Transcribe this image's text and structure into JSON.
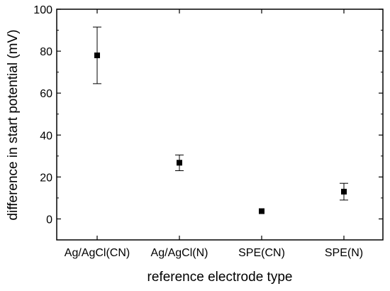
{
  "chart_data": {
    "type": "scatter",
    "title": "",
    "xlabel": "reference electrode type",
    "ylabel": "difference in start potential (mV)",
    "categories": [
      "Ag/AgCl(CN)",
      "Ag/AgCl(N)",
      "SPE(CN)",
      "SPE(N)"
    ],
    "ylim": [
      -10,
      100
    ],
    "yticks": [
      0,
      20,
      40,
      60,
      80,
      100
    ],
    "yticks_labels": [
      "0",
      "20",
      "40",
      "60",
      "80",
      "100"
    ],
    "grid": false,
    "legend": "none",
    "marker": "square",
    "series": [
      {
        "values": [
          78,
          26.8,
          3.7,
          13
        ],
        "error_lower": [
          64.5,
          23,
          3.7,
          9
        ],
        "error_upper": [
          91.5,
          30.5,
          3.7,
          17
        ]
      }
    ],
    "colors": {
      "marker": "#000000",
      "axis": "#000000"
    }
  }
}
